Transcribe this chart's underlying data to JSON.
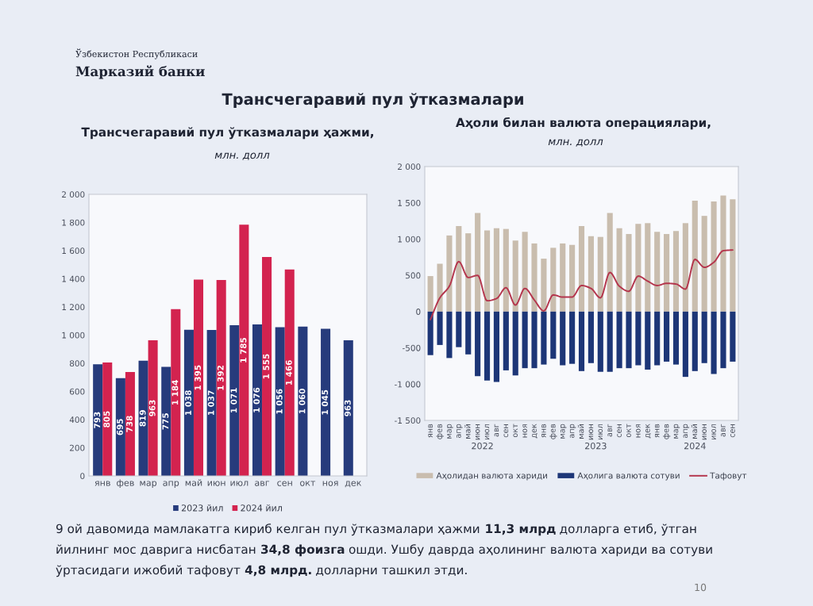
{
  "chart_data": [
    {
      "type": "other",
      "title": "Трансчегаравий пул ўтказмалари",
      "annotations": [
        "Ўзбекистон Республикаси",
        "Марказий банки",
        "10"
      ]
    },
    {
      "type": "bar",
      "title": "Трансчегаравий пул ўтказмалари ҳажми,",
      "subtitle": "млн. долл",
      "categories": [
        "янв",
        "фев",
        "мар",
        "апр",
        "май",
        "июн",
        "июл",
        "авг",
        "сен",
        "окт",
        "ноя",
        "дек"
      ],
      "series": [
        {
          "name": "2023 йил",
          "color": "#263b7c",
          "values": [
            793,
            695,
            819,
            775,
            1038,
            1037,
            1071,
            1076,
            1056,
            1060,
            1045,
            963
          ],
          "value_labels": [
            "793",
            "695",
            "819",
            "775",
            "1 038",
            "1 037",
            "1 071",
            "1 076",
            "1 056",
            "1 060",
            "1 045",
            "963"
          ]
        },
        {
          "name": "2024 йил",
          "color": "#d3234f",
          "values": [
            805,
            738,
            963,
            1184,
            1395,
            1392,
            1785,
            1555,
            1466,
            null,
            null,
            null
          ],
          "value_labels": [
            "805",
            "738",
            "963",
            "1 184",
            "1 395",
            "1 392",
            "1 785",
            "1 555",
            "1 466",
            null,
            null,
            null
          ]
        }
      ],
      "ylim": [
        0,
        2000
      ],
      "yticks": [
        0,
        200,
        400,
        600,
        800,
        {
          "value": 1000,
          "label": "1 000"
        },
        {
          "value": 1200,
          "label": "1 200"
        },
        {
          "value": 1400,
          "label": "1 400"
        },
        {
          "value": 1600,
          "label": "1 600"
        },
        {
          "value": 1800,
          "label": "1 800"
        },
        {
          "value": 2000,
          "label": "2 000"
        }
      ],
      "legend": "bottom"
    },
    {
      "type": "bar",
      "title": "Аҳоли билан валюта операциялари,",
      "subtitle": "млн. долл",
      "stacked": true,
      "categories": [
        "янв",
        "фев",
        "мар",
        "апр",
        "май",
        "июн",
        "июл",
        "авг",
        "сен",
        "окт",
        "ноя",
        "дек",
        "янв",
        "фев",
        "мар",
        "апр",
        "май",
        "июн",
        "июл",
        "авг",
        "сен",
        "окт",
        "ноя",
        "дек",
        "янв",
        "фев",
        "мар",
        "апр",
        "май",
        "июн",
        "июл",
        "авг",
        "сен"
      ],
      "series": [
        {
          "name": "Аҳолидан валюта хариди",
          "color": "#c9bdae",
          "values": [
            490,
            660,
            1050,
            1180,
            1080,
            1360,
            1120,
            1150,
            1140,
            980,
            1100,
            940,
            730,
            880,
            940,
            920,
            1180,
            1040,
            1030,
            1360,
            1150,
            1070,
            1210,
            1220,
            1100,
            1070,
            1110,
            1220,
            1530,
            1320,
            1520,
            1600,
            1550
          ]
        },
        {
          "name": "Аҳолига валюта сотуви",
          "color": "#1d3677",
          "values": [
            -600,
            -460,
            -640,
            -490,
            -590,
            -890,
            -950,
            -970,
            -810,
            -880,
            -780,
            -780,
            -730,
            -650,
            -740,
            -720,
            -820,
            -710,
            -830,
            -830,
            -780,
            -780,
            -740,
            -800,
            -740,
            -690,
            -730,
            -900,
            -820,
            -710,
            -860,
            -780,
            -690
          ]
        },
        {
          "name": "Тафовут",
          "type": "line",
          "color": "#b4354c",
          "values": [
            -110,
            190,
            350,
            690,
            470,
            500,
            150,
            180,
            330,
            90,
            320,
            160,
            10,
            230,
            200,
            200,
            360,
            320,
            190,
            540,
            350,
            280,
            490,
            420,
            360,
            390,
            380,
            310,
            720,
            610,
            680,
            840,
            850
          ]
        }
      ],
      "ylim": [
        -1500,
        2000
      ],
      "yticks": [
        {
          "value": -1500,
          "label": "-1 500"
        },
        {
          "value": -1000,
          "label": "-1 000"
        },
        -500,
        0,
        500,
        {
          "value": 1000,
          "label": "1 000"
        },
        {
          "value": 1500,
          "label": "1 500"
        },
        {
          "value": 2000,
          "label": "2 000"
        }
      ],
      "annotations": [
        "2022",
        "2023",
        "2024"
      ],
      "legend": "bottom"
    },
    {
      "type": "other",
      "annotations": [
        "9 ой давомида мамлакатга кириб келган пул ўтказмалари ҳажми",
        "11,3 млрд",
        "долларга етиб, ўтган",
        "йилнинг мос даврига нисбатан",
        "34,8 фоизга",
        "ошди. Ушбу даврда аҳолининг валюта хариди ва сотуви",
        "ўртасидаги ижобий тафовут",
        "4,8 млрд.",
        "долларни ташкил этди."
      ]
    }
  ]
}
